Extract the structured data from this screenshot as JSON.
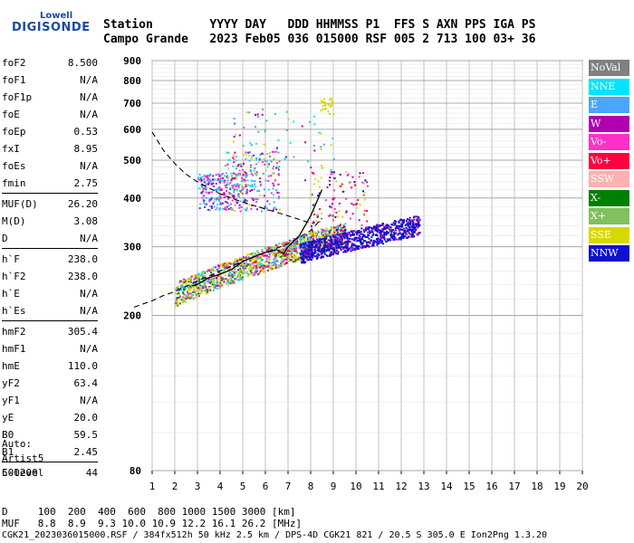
{
  "logo": {
    "top": "Lowell",
    "main": "DIGISONDE"
  },
  "header": {
    "line1": "Station        YYYY DAY   DDD HHMMSS P1  FFS S AXN PPS IGA PS",
    "line2": "Campo Grande   2023 Feb05 036 015000 RSF 005 2 713 100 03+ 36"
  },
  "params": {
    "group1": [
      {
        "label": "foF2",
        "value": "8.500"
      },
      {
        "label": "foF1",
        "value": "N/A"
      },
      {
        "label": "foF1p",
        "value": "N/A"
      },
      {
        "label": "foE",
        "value": "N/A"
      },
      {
        "label": "foEp",
        "value": "0.53"
      },
      {
        "label": "fxI",
        "value": "8.95"
      },
      {
        "label": "foEs",
        "value": "N/A"
      },
      {
        "label": "fmin",
        "value": "2.75"
      }
    ],
    "group2": [
      {
        "label": "MUF(D)",
        "value": "26.20"
      },
      {
        "label": "M(D)",
        "value": "3.08"
      },
      {
        "label": "D",
        "value": "N/A"
      }
    ],
    "group3": [
      {
        "label": "h`F",
        "value": "238.0"
      },
      {
        "label": "h`F2",
        "value": "238.0"
      },
      {
        "label": "h`E",
        "value": "N/A"
      },
      {
        "label": "h`Es",
        "value": "N/A"
      }
    ],
    "group4": [
      {
        "label": "hmF2",
        "value": "305.4"
      },
      {
        "label": "hmF1",
        "value": "N/A"
      },
      {
        "label": "hmE",
        "value": "110.0"
      },
      {
        "label": "yF2",
        "value": "63.4"
      },
      {
        "label": "yF1",
        "value": "N/A"
      },
      {
        "label": "yE",
        "value": "20.0"
      },
      {
        "label": "B0",
        "value": "59.5"
      },
      {
        "label": "B1",
        "value": "2.45"
      }
    ],
    "group5": [
      {
        "label": "C-level",
        "value": "44"
      }
    ]
  },
  "auto": {
    "line1": "Auto:",
    "line2": "Artist5",
    "line3": "500200"
  },
  "footer": {
    "line1": "D     100  200  400  600  800 1000 1500 3000 [km]",
    "line2": "MUF   8.8  8.9  9.3 10.0 10.9 12.2 16.1 26.2 [MHz]",
    "line3": "CGK21_2023036015000.RSF / 384fx512h 50 kHz 2.5 km / DPS-4D CGK21 821 / 20.5 S 305.0 E Ion2Png 1.3.20"
  },
  "legend": [
    {
      "label": "NoVal",
      "color": "#808080"
    },
    {
      "label": "NNE",
      "color": "#00e5ff"
    },
    {
      "label": "E",
      "color": "#4aa6ff"
    },
    {
      "label": "W",
      "color": "#b000b0"
    },
    {
      "label": "Vo-",
      "color": "#ff30c8"
    },
    {
      "label": "Vo+",
      "color": "#ff0040"
    },
    {
      "label": "SSW",
      "color": "#ffb0b0"
    },
    {
      "label": "X-",
      "color": "#008000"
    },
    {
      "label": "X+",
      "color": "#80c060"
    },
    {
      "label": "SSE",
      "color": "#d8d800"
    },
    {
      "label": "NNW",
      "color": "#1010d0"
    }
  ],
  "chart_data": {
    "type": "scatter",
    "title": "",
    "xlabel": "",
    "ylabel": "",
    "xlim": [
      1,
      20
    ],
    "ylim": [
      80,
      900
    ],
    "y_scale": "log",
    "x_ticks": [
      1,
      2,
      3,
      4,
      5,
      6,
      7,
      8,
      9,
      10,
      11,
      12,
      13,
      14,
      15,
      16,
      17,
      18,
      19,
      20
    ],
    "y_ticks": [
      80,
      200,
      300,
      400,
      500,
      600,
      700,
      800,
      900
    ],
    "grid": true,
    "legend_position": "right",
    "trace": {
      "x": [
        2.75,
        3.0,
        3.5,
        4.0,
        4.5,
        5.0,
        5.5,
        6.0,
        6.5,
        6.8,
        7.0,
        7.5,
        8.0,
        8.5
      ],
      "y": [
        238,
        240,
        250,
        255,
        262,
        275,
        283,
        290,
        295,
        288,
        300,
        320,
        360,
        420
      ]
    },
    "profile_curve": {
      "x": [
        0.2,
        0.4,
        0.6,
        0.8,
        1.0,
        1.5,
        2.0,
        3.0,
        4.0,
        5.0,
        6.0,
        7.0,
        8.0,
        8.5
      ],
      "y": [
        210,
        212,
        214,
        216,
        218,
        225,
        230,
        245,
        260,
        275,
        290,
        305,
        330,
        355
      ]
    },
    "muf_curve": {
      "x": [
        1.0,
        1.5,
        2.0,
        2.5,
        3.0,
        4.0,
        5.0,
        6.0,
        7.0,
        8.0
      ],
      "y": [
        590,
        530,
        490,
        460,
        440,
        410,
        390,
        375,
        360,
        345
      ]
    }
  }
}
